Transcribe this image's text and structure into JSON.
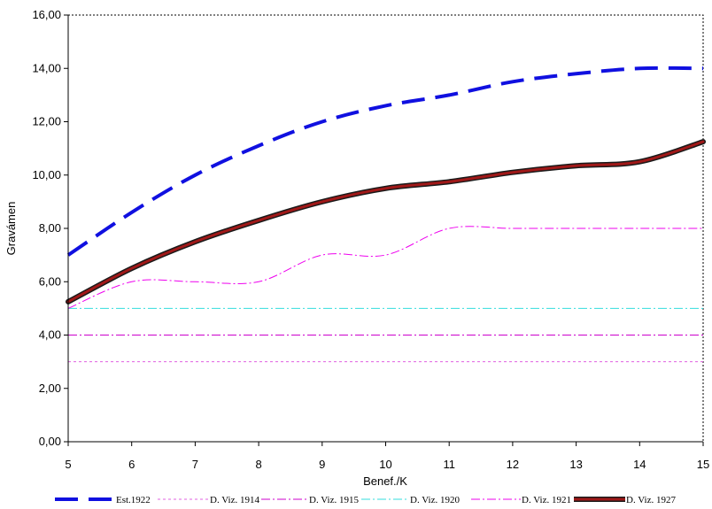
{
  "chart_data": {
    "type": "line",
    "title": "",
    "xlabel": "Benef./K",
    "ylabel": "Gravámen",
    "xlim": [
      5,
      15
    ],
    "ylim": [
      0,
      16
    ],
    "x_ticks": [
      "5",
      "6",
      "7",
      "8",
      "9",
      "10",
      "11",
      "12",
      "13",
      "14",
      "15"
    ],
    "y_ticks": [
      "0,00",
      "2,00",
      "4,00",
      "6,00",
      "8,00",
      "10,00",
      "12,00",
      "14,00",
      "16,00"
    ],
    "grid": false,
    "legend_position": "bottom",
    "series": [
      {
        "name": "Est.1922",
        "color": "#1010e0",
        "style": "long-dash-thick",
        "x": [
          5,
          6,
          7,
          8,
          9,
          10,
          11,
          12,
          13,
          14,
          15
        ],
        "y": [
          7.0,
          8.6,
          10.0,
          11.1,
          12.0,
          12.6,
          13.0,
          13.5,
          13.8,
          14.0,
          14.0
        ]
      },
      {
        "name": "D. Viz. 1914",
        "color": "#e060e0",
        "style": "dotted",
        "x": [
          5,
          15
        ],
        "y": [
          3.0,
          3.0
        ]
      },
      {
        "name": "D. Viz. 1915",
        "color": "#cc00cc",
        "style": "dash-dot",
        "x": [
          5,
          15
        ],
        "y": [
          4.0,
          4.0
        ]
      },
      {
        "name": "D. Viz. 1920",
        "color": "#33dddd",
        "style": "dash-dot",
        "x": [
          5,
          15
        ],
        "y": [
          5.0,
          5.0
        ]
      },
      {
        "name": "D. Viz. 1921",
        "color": "#ee00ee",
        "style": "dash-dot",
        "x": [
          5,
          6,
          7,
          8,
          9,
          10,
          11,
          12,
          13,
          14,
          15
        ],
        "y": [
          5.0,
          6.0,
          6.0,
          6.0,
          7.0,
          7.0,
          8.0,
          8.0,
          8.0,
          8.0,
          8.0
        ]
      },
      {
        "name": "D. Viz. 1927",
        "color": "#a01818",
        "style": "thick-solid-outlined",
        "x": [
          5,
          6,
          7,
          8,
          9,
          10,
          11,
          12,
          13,
          14,
          15
        ],
        "y": [
          5.25,
          6.5,
          7.5,
          8.3,
          9.0,
          9.5,
          9.75,
          10.1,
          10.35,
          10.5,
          11.25
        ]
      }
    ]
  }
}
